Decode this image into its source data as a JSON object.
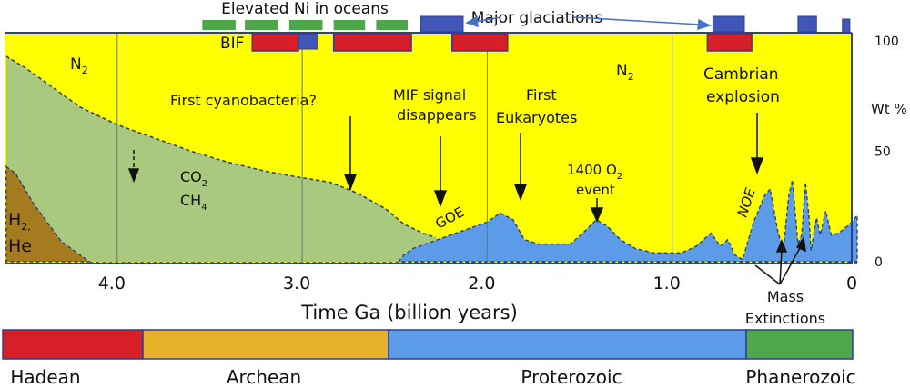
{
  "chart_data": {
    "type": "area",
    "xlabel": "Time Ga (billion years)",
    "ylabel": "Wt %",
    "xlim": [
      4.6,
      0
    ],
    "ylim": [
      0,
      100
    ],
    "x_ticks": [
      {
        "v": 4.0,
        "label": "4.0"
      },
      {
        "v": 3.0,
        "label": "3.0"
      },
      {
        "v": 2.0,
        "label": "2.0"
      },
      {
        "v": 1.0,
        "label": "1.0"
      },
      {
        "v": 0,
        "label": "0"
      }
    ],
    "y_ticks": [
      {
        "v": 100,
        "label": "100"
      },
      {
        "v": 50,
        "label": "50"
      },
      {
        "v": 0,
        "label": "0"
      }
    ],
    "colors": {
      "n2": "#ffff00",
      "co2": "#a9c97f",
      "o2": "#5b9be8",
      "h2": "#a67a1e",
      "ni": "#4ea84a",
      "bif": "#d61f26",
      "glaciation": "#4157b8",
      "border": "#2f3f8f"
    },
    "series": [
      {
        "name": "H2, He",
        "color": "#a67a1e",
        "points": [
          [
            4.6,
            43
          ],
          [
            4.55,
            40
          ],
          [
            4.45,
            26
          ],
          [
            4.3,
            9
          ],
          [
            4.15,
            0
          ],
          [
            4.6,
            0
          ]
        ]
      },
      {
        "name": "CO2 CH4",
        "color": "#a9c97f",
        "points": [
          [
            4.6,
            93
          ],
          [
            4.5,
            88
          ],
          [
            4.4,
            82
          ],
          [
            4.2,
            70
          ],
          [
            4.0,
            62
          ],
          [
            3.8,
            56
          ],
          [
            3.6,
            50
          ],
          [
            3.4,
            45
          ],
          [
            3.2,
            41
          ],
          [
            3.0,
            38
          ],
          [
            2.85,
            36
          ],
          [
            2.7,
            31
          ],
          [
            2.55,
            24
          ],
          [
            2.45,
            17
          ],
          [
            2.35,
            13
          ],
          [
            2.28,
            11
          ]
        ]
      },
      {
        "name": "O2",
        "color": "#5b9be8",
        "points": [
          [
            2.48,
            0
          ],
          [
            2.45,
            3
          ],
          [
            2.4,
            6
          ],
          [
            2.3,
            9
          ],
          [
            2.2,
            12
          ],
          [
            2.1,
            15
          ],
          [
            2.0,
            18
          ],
          [
            1.93,
            22
          ],
          [
            1.86,
            19
          ],
          [
            1.8,
            10
          ],
          [
            1.72,
            8
          ],
          [
            1.55,
            8
          ],
          [
            1.47,
            14
          ],
          [
            1.41,
            19
          ],
          [
            1.35,
            16
          ],
          [
            1.28,
            10
          ],
          [
            1.2,
            6
          ],
          [
            1.1,
            4
          ],
          [
            0.95,
            4
          ],
          [
            0.87,
            7
          ],
          [
            0.79,
            13
          ],
          [
            0.74,
            7
          ],
          [
            0.7,
            10
          ],
          [
            0.66,
            3
          ],
          [
            0.62,
            1
          ],
          [
            0.56,
            18
          ],
          [
            0.5,
            30
          ],
          [
            0.47,
            33
          ],
          [
            0.43,
            14
          ],
          [
            0.4,
            5
          ],
          [
            0.37,
            30
          ],
          [
            0.35,
            37
          ],
          [
            0.32,
            8
          ],
          [
            0.3,
            12
          ],
          [
            0.28,
            36
          ],
          [
            0.26,
            20
          ],
          [
            0.25,
            5
          ],
          [
            0.22,
            20
          ],
          [
            0.2,
            12
          ],
          [
            0.17,
            23
          ],
          [
            0.14,
            12
          ],
          [
            0.1,
            13
          ],
          [
            0.04,
            17
          ],
          [
            0,
            21
          ]
        ]
      }
    ],
    "labels": {
      "n2_left": "N",
      "n2_right": "N",
      "sub2": "2",
      "co2": "CO",
      "co2_sub": "2",
      "ch4": "CH",
      "ch4_sub": "4",
      "h2": "H",
      "h2_sub": "2,",
      "he": "He",
      "cyano": "First cyanobacteria?",
      "mif1": "MIF signal",
      "mif2": "disappears",
      "euk1": "First",
      "euk2": "Eukaryotes",
      "o2event1": "1400 O",
      "o2event_sub": "2",
      "o2event2": "event",
      "cambrian1": "Cambrian",
      "cambrian2": "explosion",
      "goe": "GOE",
      "noe": "NOE",
      "mass1": "Mass",
      "mass2": "Extinctions",
      "ni": "Elevated Ni in oceans",
      "bif": "BIF",
      "glaciations": "Major glaciations"
    },
    "ni_periods": [
      [
        3.54,
        3.36
      ],
      [
        3.31,
        3.13
      ],
      [
        3.07,
        2.89
      ],
      [
        2.83,
        2.66
      ],
      [
        2.6,
        2.43
      ]
    ],
    "bif_periods": [
      [
        3.27,
        3.02
      ],
      [
        2.83,
        2.41
      ],
      [
        2.19,
        1.89
      ],
      [
        0.81,
        0.57
      ]
    ],
    "glaciation_periods": [
      [
        2.36,
        2.13
      ],
      [
        3.02,
        2.92
      ],
      [
        0.78,
        0.61
      ],
      [
        0.32,
        0.22
      ],
      [
        0.08,
        0.04
      ]
    ],
    "eons": [
      {
        "name": "Hadean",
        "color": "#d61f26"
      },
      {
        "name": "Archean",
        "color": "#e8b12a"
      },
      {
        "name": "Proterozoic",
        "color": "#5b9be8"
      },
      {
        "name": "Phanerozoic",
        "color": "#4ea84a"
      }
    ]
  }
}
